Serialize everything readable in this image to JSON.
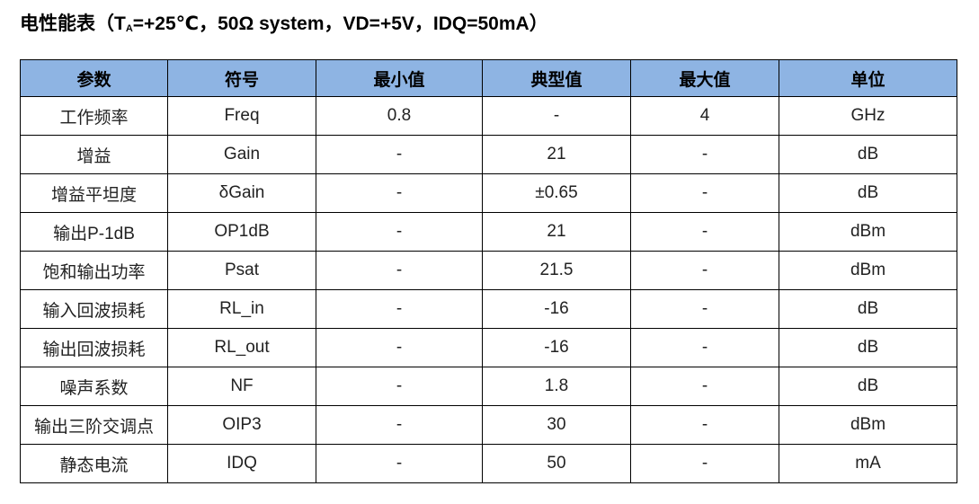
{
  "header": {
    "title": {
      "prefix": "电性能表（T",
      "sub": "A",
      "suffix": "=+25℃，50Ω system，VD=+5V，IDQ=50mA）"
    }
  },
  "table": {
    "columns": [
      "参数",
      "符号",
      "最小值",
      "典型值",
      "最大值",
      "单位"
    ],
    "rows": [
      [
        "工作频率",
        "Freq",
        0.8,
        "-",
        4,
        "GHz"
      ],
      [
        "增益",
        "Gain",
        "-",
        21,
        "-",
        "dB"
      ],
      [
        "增益平坦度",
        "δGain",
        "-",
        "±0.65",
        "-",
        "dB"
      ],
      [
        "输出P-1dB",
        "OP1dB",
        "-",
        21,
        "-",
        "dBm"
      ],
      [
        "饱和输出功率",
        "Psat",
        "-",
        21.5,
        "-",
        "dBm"
      ],
      [
        "输入回波损耗",
        "RL_in",
        "-",
        -16,
        "-",
        "dB"
      ],
      [
        "输出回波损耗",
        "RL_out",
        "-",
        -16,
        "-",
        "dB"
      ],
      [
        "噪声系数",
        "NF",
        "-",
        1.8,
        "-",
        "dB"
      ],
      [
        "输出三阶交调点",
        "OIP3",
        "-",
        30,
        "-",
        "dBm"
      ],
      [
        "静态电流",
        "IDQ",
        "-",
        50,
        "-",
        "mA"
      ]
    ]
  }
}
